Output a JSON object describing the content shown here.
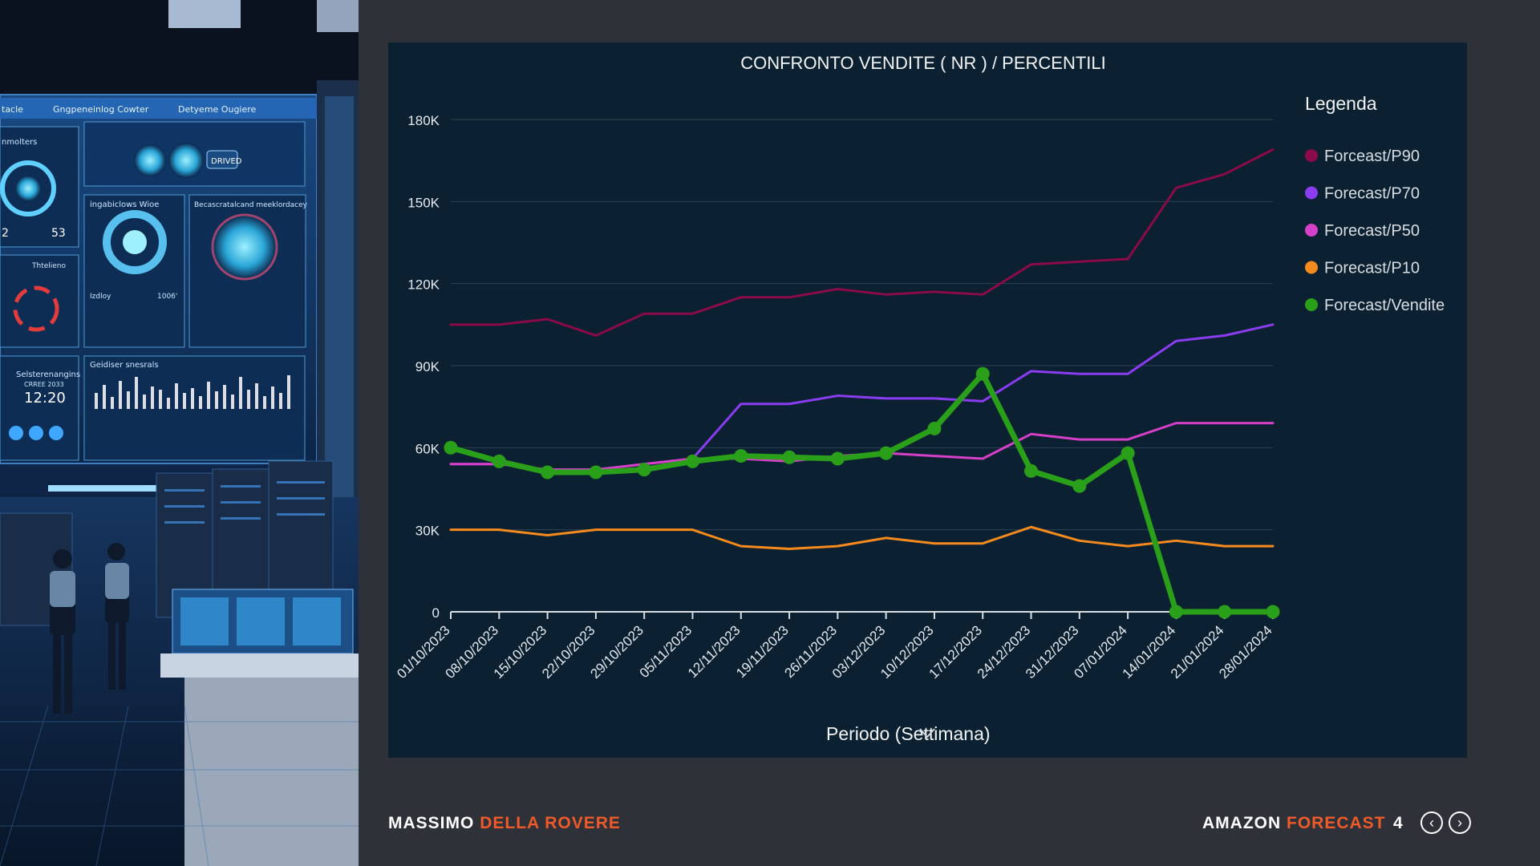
{
  "footer": {
    "author_first": "MASSIMO",
    "author_last": "DELLA ROVERE",
    "topic_first": "AMAZON",
    "topic_second": "FORECAST",
    "page_number": "4"
  },
  "photo": {
    "header_items": [
      "tacle",
      "Gngpeneinlog Cowter",
      "Detyeme Ougiere"
    ],
    "panel_labels": [
      "nmolters",
      "ingabiclows Wioe",
      "Becascratalcand meeklordacey",
      "Thtelieno",
      "Geidiser snesrals",
      "Selsterenangins"
    ],
    "clock": "12:20",
    "clock_caption": "CRREE 2033",
    "gauge_a": "2",
    "gauge_b": "53",
    "button_text": "DRIVED",
    "small_label_a": "Izdloy",
    "small_label_b": "1006'"
  },
  "chart_data": {
    "type": "line",
    "title": "CONFRONTO VENDITE ( NR ) / PERCENTILI",
    "xlabel": "Periodo (Settimana)",
    "ylabel": "",
    "legend_title": "Legenda",
    "legend_position": "right",
    "grid": true,
    "ylim": [
      0,
      180000
    ],
    "yticks": [
      0,
      30000,
      60000,
      90000,
      120000,
      150000,
      180000
    ],
    "ytick_labels": [
      "0",
      "30K",
      "60K",
      "90K",
      "120K",
      "150K",
      "180K"
    ],
    "categories": [
      "01/10/2023",
      "08/10/2023",
      "15/10/2023",
      "22/10/2023",
      "29/10/2023",
      "05/11/2023",
      "12/11/2023",
      "19/11/2023",
      "26/11/2023",
      "03/12/2023",
      "10/12/2023",
      "17/12/2023",
      "24/12/2023",
      "31/12/2023",
      "07/01/2024",
      "14/01/2024",
      "21/01/2024",
      "28/01/2024"
    ],
    "series": [
      {
        "name": "Forceast/P90",
        "color": "#8b0a4b",
        "values": [
          105000,
          105000,
          107000,
          101000,
          109000,
          109000,
          115000,
          115000,
          118000,
          116000,
          117000,
          116000,
          127000,
          128000,
          129000,
          155000,
          160000,
          169000
        ]
      },
      {
        "name": "Forecast/P70",
        "color": "#8a3cf0",
        "values": [
          54000,
          54000,
          52000,
          52000,
          54000,
          56000,
          76000,
          76000,
          79000,
          78000,
          78000,
          77000,
          88000,
          87000,
          87000,
          99000,
          101000,
          105000
        ]
      },
      {
        "name": "Forecast/P50",
        "color": "#d63fc8",
        "values": [
          54000,
          54000,
          52000,
          52000,
          54000,
          56000,
          56000,
          55000,
          57000,
          58000,
          57000,
          56000,
          65000,
          63000,
          63000,
          69000,
          69000,
          69000
        ]
      },
      {
        "name": "Forecast/P10",
        "color": "#f58b1e",
        "values": [
          30000,
          30000,
          28000,
          30000,
          30000,
          30000,
          24000,
          23000,
          24000,
          27000,
          25000,
          25000,
          31000,
          26000,
          24000,
          26000,
          24000,
          24000
        ]
      },
      {
        "name": "Forecast/Vendite",
        "color": "#2aa01a",
        "values": [
          60000,
          55000,
          51000,
          51000,
          52000,
          55000,
          57000,
          56500,
          56000,
          58000,
          67000,
          87000,
          51500,
          46000,
          58000,
          0,
          0,
          0
        ]
      }
    ]
  }
}
